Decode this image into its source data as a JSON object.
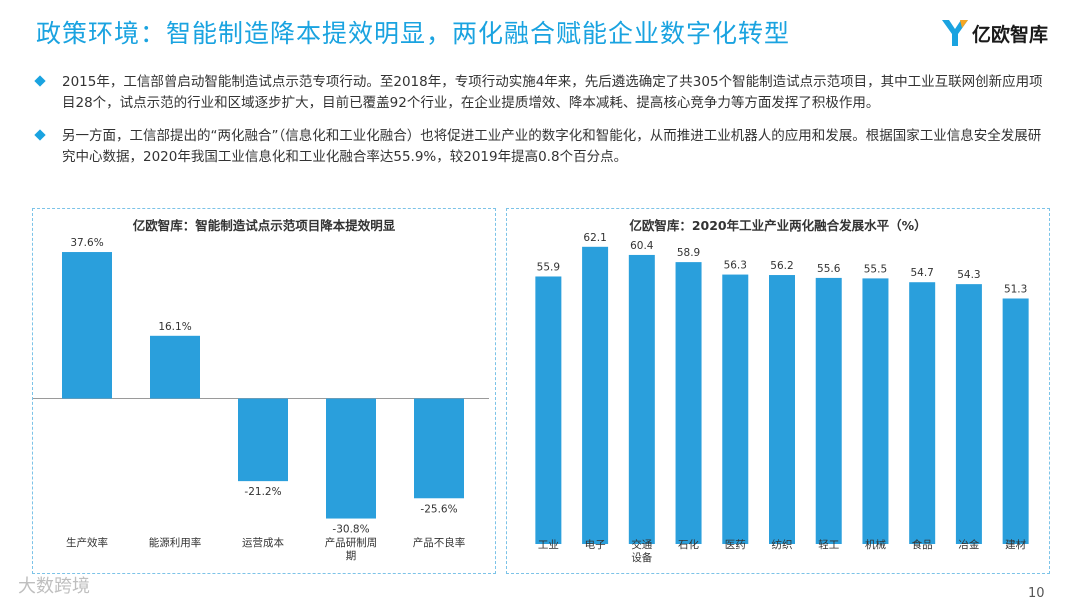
{
  "page": {
    "title": "政策环境：智能制造降本提效明显，两化融合赋能企业数字化转型",
    "logo_text": "亿欧智库",
    "page_number": "10",
    "watermark": "大数跨境",
    "brand_color": "#1aa3e0",
    "bar_color": "#2a9fdc"
  },
  "bullets": [
    {
      "text": "2015年，工信部曾启动智能制造试点示范专项行动。至2018年，专项行动实施4年来，先后遴选确定了共305个智能制造试点示范项目，其中工业互联网创新应用项目28个，试点示范的行业和区域逐步扩大，目前已覆盖92个行业，在企业提质增效、降本减耗、提高核心竞争力等方面发挥了积极作用。"
    },
    {
      "text": "另一方面，工信部提出的“两化融合”（信息化和工业化融合）也将促进工业产业的数字化和智能化，从而推进工业机器人的应用和发展。根据国家工业信息安全发展研究中心数据，2020年我国工业信息化和工业化融合率达55.9%，较2019年提高0.8个百分点。"
    }
  ],
  "chart_data": [
    {
      "type": "bar",
      "title": "亿欧智库：智能制造试点示范项目降本提效明显",
      "categories": [
        "生产效率",
        "能源利用率",
        "运营成本",
        "产品研制周期",
        "产品不良率"
      ],
      "values": [
        37.6,
        16.1,
        -21.2,
        -30.8,
        -25.6
      ],
      "value_labels": [
        "37.6%",
        "16.1%",
        "-21.2%",
        "-30.8%",
        "-25.6%"
      ],
      "ylim": [
        -34,
        43
      ],
      "grid": false,
      "legend": "none"
    },
    {
      "type": "bar",
      "title": "亿欧智库：2020年工业产业两化融合发展水平（%）",
      "categories": [
        "工业",
        "电子",
        "交通设备",
        "石化",
        "医药",
        "纺织",
        "轻工",
        "机械",
        "食品",
        "冶金",
        "建材"
      ],
      "values": [
        55.9,
        62.1,
        60.4,
        58.9,
        56.3,
        56.2,
        55.6,
        55.5,
        54.7,
        54.3,
        51.3
      ],
      "value_labels": [
        "55.9",
        "62.1",
        "60.4",
        "58.9",
        "56.3",
        "56.2",
        "55.6",
        "55.5",
        "54.7",
        "54.3",
        "51.3"
      ],
      "ylim": [
        0,
        70
      ],
      "grid": false,
      "legend": "none"
    }
  ]
}
